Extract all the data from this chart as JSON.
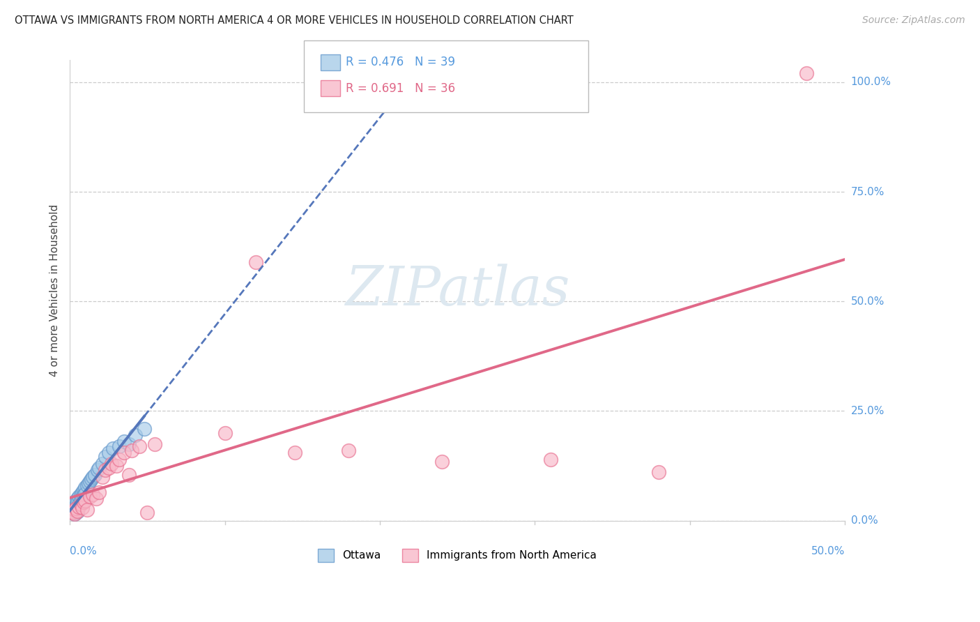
{
  "title": "OTTAWA VS IMMIGRANTS FROM NORTH AMERICA 4 OR MORE VEHICLES IN HOUSEHOLD CORRELATION CHART",
  "source": "Source: ZipAtlas.com",
  "ylabel": "4 or more Vehicles in Household",
  "xmin": 0.0,
  "xmax": 0.5,
  "ymin": 0.0,
  "ymax": 1.05,
  "legend_ottawa": "Ottawa",
  "legend_immigrants": "Immigrants from North America",
  "R_ottawa": 0.476,
  "N_ottawa": 39,
  "R_immigrants": 0.691,
  "N_immigrants": 36,
  "color_ottawa_fill": "#a8cce8",
  "color_ottawa_edge": "#6699cc",
  "color_immigrants_fill": "#f8b8c8",
  "color_immigrants_edge": "#e87090",
  "line_color_ottawa": "#5577bb",
  "line_color_immigrants": "#e06888",
  "watermark_text": "ZIPatlas",
  "watermark_color": "#dde8f0",
  "background_color": "#ffffff",
  "grid_color": "#cccccc",
  "right_tick_color": "#5599dd",
  "ytick_vals": [
    0.0,
    0.25,
    0.5,
    0.75,
    1.0
  ],
  "ytick_labels": [
    "0.0%",
    "25.0%",
    "50.0%",
    "75.0%",
    "100.0%"
  ],
  "xtick_left": "0.0%",
  "xtick_right": "50.0%",
  "ottawa_x": [
    0.001,
    0.002,
    0.002,
    0.003,
    0.003,
    0.003,
    0.004,
    0.004,
    0.004,
    0.005,
    0.005,
    0.005,
    0.006,
    0.006,
    0.007,
    0.007,
    0.008,
    0.008,
    0.009,
    0.009,
    0.01,
    0.01,
    0.011,
    0.012,
    0.013,
    0.014,
    0.015,
    0.016,
    0.018,
    0.019,
    0.021,
    0.023,
    0.025,
    0.028,
    0.032,
    0.035,
    0.038,
    0.042,
    0.048
  ],
  "ottawa_y": [
    0.025,
    0.03,
    0.018,
    0.04,
    0.022,
    0.015,
    0.045,
    0.035,
    0.028,
    0.05,
    0.042,
    0.02,
    0.055,
    0.038,
    0.06,
    0.048,
    0.065,
    0.052,
    0.07,
    0.058,
    0.075,
    0.062,
    0.08,
    0.085,
    0.09,
    0.095,
    0.1,
    0.105,
    0.115,
    0.12,
    0.13,
    0.145,
    0.155,
    0.165,
    0.17,
    0.18,
    0.175,
    0.195,
    0.21
  ],
  "immigrants_x": [
    0.001,
    0.002,
    0.003,
    0.003,
    0.004,
    0.005,
    0.006,
    0.007,
    0.008,
    0.009,
    0.01,
    0.011,
    0.013,
    0.015,
    0.017,
    0.019,
    0.021,
    0.023,
    0.025,
    0.027,
    0.03,
    0.032,
    0.035,
    0.038,
    0.04,
    0.045,
    0.05,
    0.055,
    0.1,
    0.12,
    0.145,
    0.18,
    0.24,
    0.31,
    0.38,
    0.475
  ],
  "immigrants_y": [
    0.02,
    0.018,
    0.025,
    0.015,
    0.028,
    0.022,
    0.032,
    0.038,
    0.03,
    0.042,
    0.045,
    0.025,
    0.055,
    0.06,
    0.05,
    0.065,
    0.1,
    0.115,
    0.12,
    0.13,
    0.125,
    0.14,
    0.155,
    0.105,
    0.16,
    0.17,
    0.018,
    0.175,
    0.2,
    0.59,
    0.155,
    0.16,
    0.135,
    0.14,
    0.11,
    1.02
  ]
}
